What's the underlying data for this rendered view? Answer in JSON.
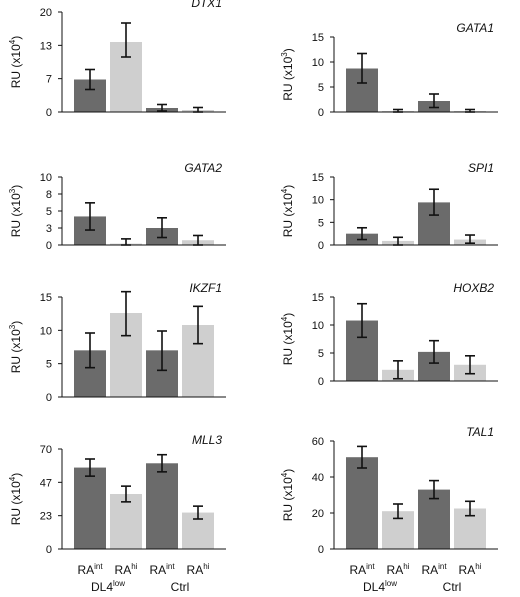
{
  "colors": {
    "int": "#6b6b6b",
    "hi": "#cfcfcf",
    "axis": "#111111"
  },
  "chart_data": [
    {
      "type": "bar",
      "title": "DTX1",
      "ylabel": "RU (x10",
      "yexp": "4",
      "ylabel_close": ")",
      "ylim": [
        0,
        20
      ],
      "ticks": [
        "0",
        "7",
        "13",
        "20"
      ],
      "tick_values": [
        0,
        6.67,
        13.33,
        20
      ],
      "categories": [
        "DL4low RAint",
        "DL4low RAhi",
        "Ctrl RAint",
        "Ctrl RAhi"
      ],
      "values": [
        6.5,
        14,
        0.8,
        0.4
      ],
      "err_low": [
        4.5,
        11,
        0.2,
        0
      ],
      "err_high": [
        8.5,
        17.8,
        1.5,
        0.9
      ]
    },
    {
      "type": "bar",
      "title": "GATA1",
      "ylabel": "RU (x10",
      "yexp": "3",
      "ylabel_close": ")",
      "ylim": [
        0,
        15
      ],
      "ticks": [
        "0",
        "5",
        "10",
        "15"
      ],
      "tick_values": [
        0,
        5,
        10,
        15
      ],
      "categories": [
        "DL4low RAint",
        "DL4low RAhi",
        "Ctrl RAint",
        "Ctrl RAhi"
      ],
      "values": [
        8.7,
        0.2,
        2.2,
        0.2
      ],
      "err_low": [
        5.8,
        0,
        0.9,
        0
      ],
      "err_high": [
        11.7,
        0.5,
        3.6,
        0.5
      ]
    },
    {
      "type": "bar",
      "title": "GATA2",
      "ylabel": "RU (x10",
      "yexp": "3",
      "ylabel_close": ")",
      "ylim": [
        0,
        10
      ],
      "ticks": [
        "0",
        "3",
        "5",
        "8",
        "10"
      ],
      "tick_values": [
        0,
        2.5,
        5,
        7.5,
        10
      ],
      "categories": [
        "DL4low RAint",
        "DL4low RAhi",
        "Ctrl RAint",
        "Ctrl RAhi"
      ],
      "values": [
        4.2,
        0.2,
        2.5,
        0.7
      ],
      "err_low": [
        2.2,
        0,
        1.1,
        0
      ],
      "err_high": [
        6.2,
        0.9,
        4.0,
        1.4
      ]
    },
    {
      "type": "bar",
      "title": "SPI1",
      "ylabel": "RU (x10",
      "yexp": "4",
      "ylabel_close": ")",
      "ylim": [
        0,
        15
      ],
      "ticks": [
        "0",
        "5",
        "10",
        "15"
      ],
      "tick_values": [
        0,
        5,
        10,
        15
      ],
      "categories": [
        "DL4low RAint",
        "DL4low RAhi",
        "Ctrl RAint",
        "Ctrl RAhi"
      ],
      "values": [
        2.5,
        0.9,
        9.4,
        1.2
      ],
      "err_low": [
        1.2,
        0,
        6.6,
        0.4
      ],
      "err_high": [
        3.8,
        1.7,
        12.3,
        2.2
      ]
    },
    {
      "type": "bar",
      "title": "IKZF1",
      "ylabel": "RU (x10",
      "yexp": "3",
      "ylabel_close": ")",
      "ylim": [
        0,
        15
      ],
      "ticks": [
        "0",
        "5",
        "10",
        "15"
      ],
      "tick_values": [
        0,
        5,
        10,
        15
      ],
      "categories": [
        "DL4low RAint",
        "DL4low RAhi",
        "Ctrl RAint",
        "Ctrl RAhi"
      ],
      "values": [
        7.0,
        12.6,
        7.0,
        10.8
      ],
      "err_low": [
        4.4,
        9.2,
        4.0,
        8.0
      ],
      "err_high": [
        9.6,
        15.8,
        9.9,
        13.6
      ]
    },
    {
      "type": "bar",
      "title": "HOXB2",
      "ylabel": "RU (x10",
      "yexp": "4",
      "ylabel_close": ")",
      "ylim": [
        0,
        15
      ],
      "ticks": [
        "0",
        "5",
        "10",
        "15"
      ],
      "tick_values": [
        0,
        5,
        10,
        15
      ],
      "categories": [
        "DL4low RAint",
        "DL4low RAhi",
        "Ctrl RAint",
        "Ctrl RAhi"
      ],
      "values": [
        10.8,
        2.0,
        5.2,
        2.9
      ],
      "err_low": [
        7.8,
        0.4,
        3.2,
        1.3
      ],
      "err_high": [
        13.8,
        3.6,
        7.2,
        4.5
      ]
    },
    {
      "type": "bar",
      "title": "MLL3",
      "ylabel": "RU (x10",
      "yexp": "4",
      "ylabel_close": ")",
      "ylim": [
        0,
        70
      ],
      "ticks": [
        "0",
        "23",
        "47",
        "70"
      ],
      "tick_values": [
        0,
        23.33,
        46.67,
        70
      ],
      "categories": [
        "DL4low RAint",
        "DL4low RAhi",
        "Ctrl RAint",
        "Ctrl RAhi"
      ],
      "values": [
        57,
        38.5,
        60,
        25.5
      ],
      "err_low": [
        51,
        33,
        54,
        21
      ],
      "err_high": [
        63,
        44,
        66,
        30
      ]
    },
    {
      "type": "bar",
      "title": "TAL1",
      "ylabel": "RU (x10",
      "yexp": "4",
      "ylabel_close": ")",
      "ylim": [
        0,
        60
      ],
      "ticks": [
        "0",
        "20",
        "40",
        "60"
      ],
      "tick_values": [
        0,
        20,
        40,
        60
      ],
      "categories": [
        "DL4low RAint",
        "DL4low RAhi",
        "Ctrl RAint",
        "Ctrl RAhi"
      ],
      "values": [
        51,
        21,
        33,
        22.5
      ],
      "err_low": [
        45,
        17,
        28,
        18.5
      ],
      "err_high": [
        57,
        25,
        38,
        26.5
      ]
    }
  ],
  "x_axis": {
    "bar_labels": [
      {
        "base": "RA",
        "sup": "int"
      },
      {
        "base": "RA",
        "sup": "hi"
      },
      {
        "base": "RA",
        "sup": "int"
      },
      {
        "base": "RA",
        "sup": "hi"
      }
    ],
    "groups": [
      {
        "base": "DL4",
        "sup": "low"
      },
      {
        "base": "Ctrl",
        "sup": ""
      }
    ]
  }
}
